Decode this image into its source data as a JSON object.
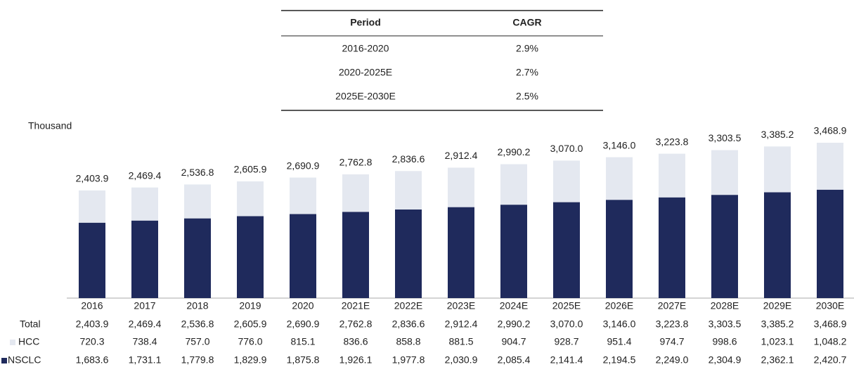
{
  "cagr_table": {
    "columns": [
      "Period",
      "CAGR"
    ],
    "rows": [
      [
        "2016-2020",
        "2.9%"
      ],
      [
        "2020-2025E",
        "2.7%"
      ],
      [
        "2025E-2030E",
        "2.5%"
      ]
    ]
  },
  "chart_data": {
    "type": "bar",
    "stacked": true,
    "unit_label": "Thousand",
    "categories": [
      "2016",
      "2017",
      "2018",
      "2019",
      "2020",
      "2021E",
      "2022E",
      "2023E",
      "2024E",
      "2025E",
      "2026E",
      "2027E",
      "2028E",
      "2029E",
      "2030E"
    ],
    "series": [
      {
        "name": "NSCLC",
        "color": "#1f2a5c",
        "values": [
          1683.6,
          1731.1,
          1779.8,
          1829.9,
          1875.8,
          1926.1,
          1977.8,
          2030.9,
          2085.4,
          2141.4,
          2194.5,
          2249.0,
          2304.9,
          2362.1,
          2420.7
        ],
        "value_labels": [
          "1,683.6",
          "1,731.1",
          "1,779.8",
          "1,829.9",
          "1,875.8",
          "1,926.1",
          "1,977.8",
          "2,030.9",
          "2,085.4",
          "2,141.4",
          "2,194.5",
          "2,249.0",
          "2,304.9",
          "2,362.1",
          "2,420.7"
        ]
      },
      {
        "name": "HCC",
        "color": "#e4e8f0",
        "values": [
          720.3,
          738.4,
          757.0,
          776.0,
          815.1,
          836.6,
          858.8,
          881.5,
          904.7,
          928.7,
          951.4,
          974.7,
          998.6,
          1023.1,
          1048.2
        ],
        "value_labels": [
          "720.3",
          "738.4",
          "757.0",
          "776.0",
          "815.1",
          "836.6",
          "858.8",
          "881.5",
          "904.7",
          "928.7",
          "951.4",
          "974.7",
          "998.6",
          "1,023.1",
          "1,048.2"
        ]
      }
    ],
    "totals": {
      "name": "Total",
      "values": [
        2403.9,
        2469.4,
        2536.8,
        2605.9,
        2690.9,
        2762.8,
        2836.6,
        2912.4,
        2990.2,
        3070.0,
        3146.0,
        3223.8,
        3303.5,
        3385.2,
        3468.9
      ],
      "value_labels": [
        "2,403.9",
        "2,469.4",
        "2,536.8",
        "2,605.9",
        "2,690.9",
        "2,762.8",
        "2,836.6",
        "2,912.4",
        "2,990.2",
        "3,070.0",
        "3,146.0",
        "3,223.8",
        "3,303.5",
        "3,385.2",
        "3,468.9"
      ]
    }
  }
}
